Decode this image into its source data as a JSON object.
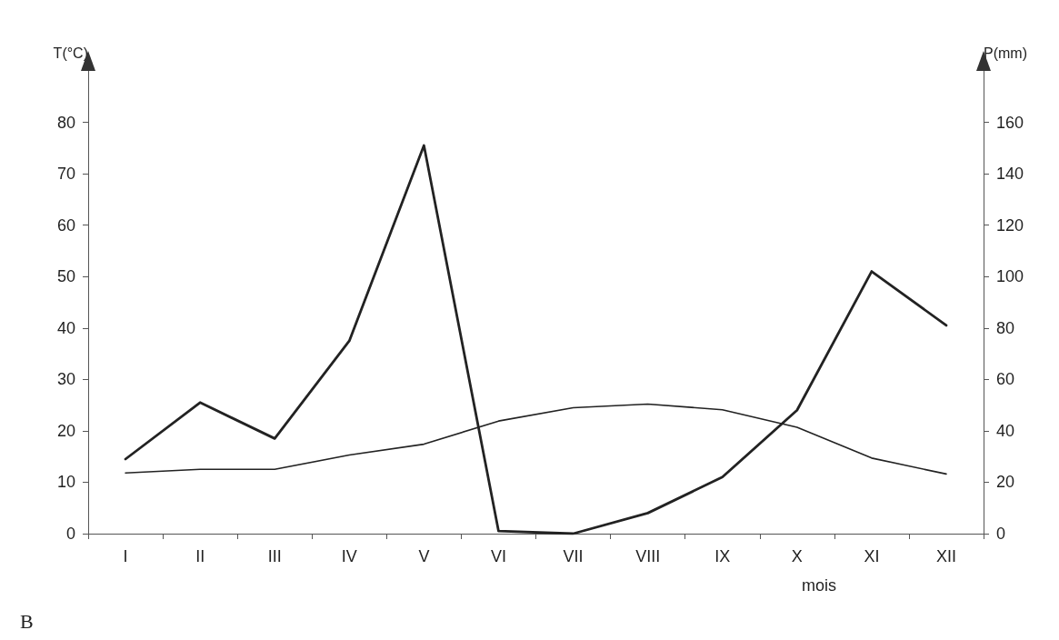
{
  "chart_data": {
    "type": "line",
    "ylabel": "T(°C)",
    "y2label": "P(mm)",
    "xlabel": "mois",
    "annotations": [
      "B"
    ],
    "categories": [
      "I",
      "II",
      "III",
      "IV",
      "V",
      "VI",
      "VII",
      "VIII",
      "IX",
      "X",
      "XI",
      "XII"
    ],
    "series": [
      {
        "color": "#222222",
        "values": [
          11.8,
          12.5,
          12.5,
          15.3,
          17.4,
          21.9,
          24.5,
          25.2,
          24.1,
          20.7,
          14.7,
          11.6
        ]
      },
      {
        "color": "#222222",
        "axis": "y2",
        "values": [
          29,
          51,
          37,
          75,
          151,
          1,
          0,
          8,
          22,
          48,
          102,
          81
        ]
      }
    ],
    "ylim": [
      0,
      90
    ],
    "yticks": [
      0,
      10,
      20,
      30,
      40,
      50,
      60,
      70,
      80
    ],
    "y2lim": [
      0,
      180
    ],
    "y2ticks": [
      0,
      20,
      40,
      60,
      80,
      100,
      120,
      140,
      160
    ],
    "grid": false,
    "marker": "none",
    "line_style": "solid"
  }
}
